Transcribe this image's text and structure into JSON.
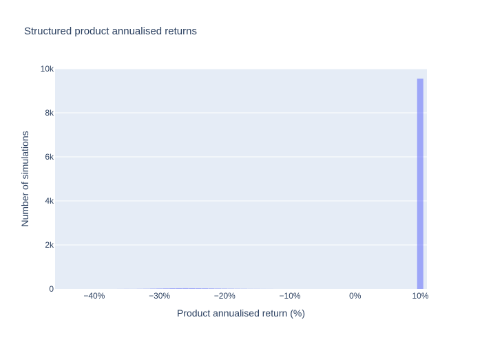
{
  "chart_data": {
    "type": "bar",
    "title": "Structured product annualised returns",
    "xlabel": "Product annualised return (%)",
    "ylabel": "Number of simulations",
    "xlim": [
      -46,
      11
    ],
    "ylim": [
      0,
      10000
    ],
    "x_ticks": [
      -40,
      -30,
      -20,
      -10,
      0,
      10
    ],
    "x_tick_labels": [
      "−40%",
      "−30%",
      "−20%",
      "−10%",
      "0%",
      "10%"
    ],
    "y_ticks": [
      0,
      2000,
      4000,
      6000,
      8000,
      10000
    ],
    "y_tick_labels": [
      "0",
      "2k",
      "4k",
      "6k",
      "8k",
      "10k"
    ],
    "bin_width": 1,
    "bins": [
      {
        "x": -36,
        "count": 2
      },
      {
        "x": -35,
        "count": 4
      },
      {
        "x": -34,
        "count": 3
      },
      {
        "x": -33,
        "count": 6
      },
      {
        "x": -32,
        "count": 10
      },
      {
        "x": -31,
        "count": 15
      },
      {
        "x": -30,
        "count": 20
      },
      {
        "x": -29,
        "count": 25
      },
      {
        "x": -28,
        "count": 30
      },
      {
        "x": -27,
        "count": 32
      },
      {
        "x": -26,
        "count": 35
      },
      {
        "x": -25,
        "count": 32
      },
      {
        "x": -24,
        "count": 30
      },
      {
        "x": -23,
        "count": 28
      },
      {
        "x": -22,
        "count": 24
      },
      {
        "x": -21,
        "count": 20
      },
      {
        "x": -20,
        "count": 16
      },
      {
        "x": -19,
        "count": 13
      },
      {
        "x": -18,
        "count": 10
      },
      {
        "x": -17,
        "count": 8
      },
      {
        "x": -16,
        "count": 5
      },
      {
        "x": -15,
        "count": 4
      },
      {
        "x": -14,
        "count": 3
      },
      {
        "x": -13,
        "count": 2
      },
      {
        "x": 10,
        "count": 9550
      }
    ],
    "bar_color": "#636efa",
    "bar_opacity": 0.55,
    "plot_bgcolor": "#e5ecf6",
    "grid": true
  }
}
